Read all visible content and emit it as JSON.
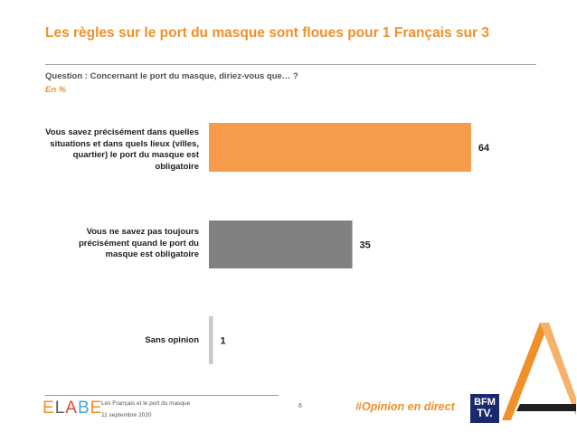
{
  "header": {
    "title": "Les règles sur le port du masque sont floues pour 1 Français sur 3",
    "question": "Question : Concernant le port du masque, diriez-vous que… ?",
    "unit": "En  %"
  },
  "chart_data": {
    "type": "bar",
    "orientation": "horizontal",
    "title": "",
    "xlabel": "",
    "ylabel": "",
    "xlim": [
      0,
      100
    ],
    "categories": [
      "Vous savez précisément dans quelles situations et dans quels lieux (villes, quartier) le port du masque est obligatoire",
      "Vous ne savez pas toujours précisément quand le port du masque est obligatoire",
      "Sans opinion"
    ],
    "values": [
      64,
      35,
      1
    ],
    "colors": [
      "#f59b4a",
      "#808080",
      "#c8c8c8"
    ],
    "grid": false,
    "legend": "none"
  },
  "footer": {
    "brand": "ELABE",
    "brand_colors": [
      "#f0902a",
      "#5b5b5b",
      "#e2462f",
      "#3fa9d6",
      "#f0902a"
    ],
    "survey_title": "Les Français et le port du masque",
    "date": "11 septembre 2020",
    "page_number": "6",
    "hashtag": "#Opinion en direct",
    "partner_logo_line1": "BFM",
    "partner_logo_line2": "TV."
  },
  "decor": {
    "triangle_colors": [
      "#f0902a",
      "#f6b26b",
      "#1f1f1f"
    ]
  }
}
